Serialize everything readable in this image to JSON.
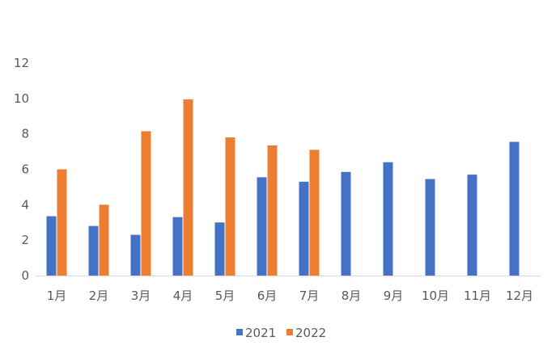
{
  "chart_data": {
    "type": "bar",
    "categories": [
      "1月",
      "2月",
      "3月",
      "4月",
      "5月",
      "6月",
      "7月",
      "8月",
      "9月",
      "10月",
      "11月",
      "12月"
    ],
    "series": [
      {
        "name": "2021",
        "color": "#4472C4",
        "values": [
          3.35,
          2.8,
          2.3,
          3.3,
          3.0,
          5.55,
          5.3,
          5.85,
          6.4,
          5.45,
          5.7,
          7.55
        ]
      },
      {
        "name": "2022",
        "color": "#ED7D31",
        "values": [
          6.0,
          4.0,
          8.15,
          9.95,
          7.8,
          7.35,
          7.1,
          null,
          null,
          null,
          null,
          null
        ]
      }
    ],
    "yticks": [
      0,
      2,
      4,
      6,
      8,
      10,
      12
    ],
    "ylim": [
      0,
      12
    ],
    "grid": false,
    "legend_position": "bottom",
    "title": "",
    "xlabel": "",
    "ylabel": ""
  }
}
